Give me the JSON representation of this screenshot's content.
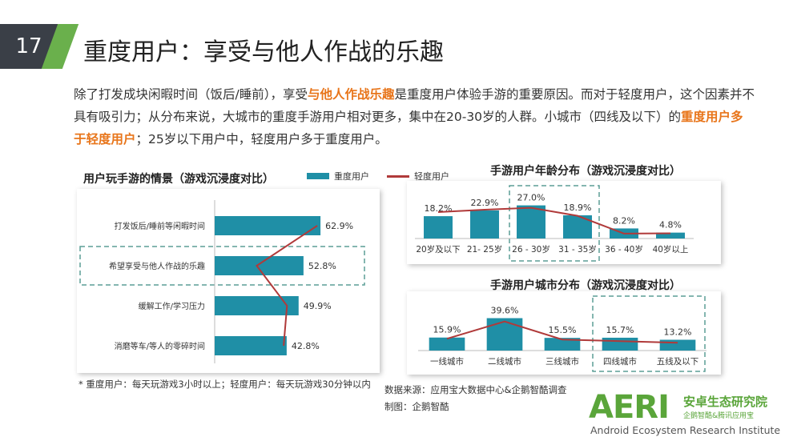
{
  "page": {
    "number": "17",
    "title": "重度用户：享受与他人作战的乐趣",
    "intro": [
      {
        "t": "除了打发成块闲暇时间（饭后/睡前），享受",
        "h": false
      },
      {
        "t": "与他人作战乐趣",
        "h": true
      },
      {
        "t": "是重度用户体验手游的重要原因。而对于轻度用户，这个因素并不具有吸引力；从分布来说，大城市的重度手游用户相对更多，集中在20-30岁的人群。小城市（四线及以下）的",
        "h": false
      },
      {
        "t": "重度用户多于轻度用户",
        "h": true
      },
      {
        "t": "；25岁以下用户中，轻度用户多于重度用户。",
        "h": false
      }
    ],
    "footnote": "* 重度用户：每天玩游戏3小时以上；轻度用户：每天玩游戏30分钟以内",
    "source": "数据来源：应用宝大数据中心&企鹅智酷调查",
    "made_by": "制图：企鹅智酷",
    "logo": {
      "main": "AERI",
      "cn": "安卓生态研究院",
      "sub": "企鹅智酷&腾讯应用宝",
      "en": "Android Ecosystem Research Institute"
    },
    "colors": {
      "bar": "#1f8fa6",
      "line": "#b03a3a",
      "highlight": "#e8751a",
      "brand": "#5aa53a"
    }
  },
  "chart_data": [
    {
      "type": "bar",
      "orientation": "horizontal",
      "title": "用户玩手游的情景（游戏沉浸度对比）",
      "legend": [
        "重度用户",
        "轻度用户"
      ],
      "categories": [
        "打发饭后/睡前等闲暇时间",
        "希望享受与他人作战的乐趣",
        "缓解工作/学习压力",
        "消磨等车/等人的零碎时间"
      ],
      "series": [
        {
          "name": "重度用户",
          "kind": "bar",
          "values": [
            62.9,
            52.8,
            49.9,
            42.8
          ],
          "labels": [
            "62.9%",
            "52.8%",
            "49.9%",
            "42.8%"
          ]
        },
        {
          "name": "轻度用户",
          "kind": "line",
          "values": [
            61,
            25,
            43,
            41
          ]
        }
      ],
      "highlighted_category": "希望享受与他人作战的乐趣"
    },
    {
      "type": "bar",
      "title": "手游用户年龄分布（游戏沉浸度对比）",
      "categories": [
        "20岁及以下",
        "21- 25岁",
        "26 - 30岁",
        "31 - 35岁",
        "36 - 40岁",
        "40岁以上"
      ],
      "series": [
        {
          "name": "重度用户",
          "kind": "bar",
          "values": [
            18.2,
            22.9,
            27.0,
            18.9,
            8.2,
            4.8
          ],
          "labels": [
            "18.2%",
            "22.9%",
            "27.0%",
            "18.9%",
            "8.2%",
            "4.8%"
          ]
        },
        {
          "name": "轻度用户",
          "kind": "line",
          "values": [
            21.5,
            23.5,
            25.0,
            18.5,
            4.0,
            4.2
          ]
        }
      ],
      "ylim": [
        0,
        30
      ],
      "highlighted_categories": [
        "26 - 30岁",
        "31 - 35岁"
      ]
    },
    {
      "type": "bar",
      "title": "手游用户城市分布（游戏沉浸度对比）",
      "categories": [
        "一线城市",
        "二线城市",
        "三线城市",
        "四线城市",
        "五线及以下"
      ],
      "series": [
        {
          "name": "重度用户",
          "kind": "bar",
          "values": [
            15.9,
            39.6,
            15.5,
            15.7,
            13.2
          ],
          "labels": [
            "15.9%",
            "39.6%",
            "15.5%",
            "15.7%",
            "13.2%"
          ]
        },
        {
          "name": "轻度用户",
          "kind": "line",
          "values": [
            14.5,
            35.5,
            13.5,
            11.5,
            9.5
          ]
        }
      ],
      "ylim": [
        0,
        45
      ],
      "highlighted_categories": [
        "四线城市",
        "五线及以下"
      ]
    }
  ]
}
